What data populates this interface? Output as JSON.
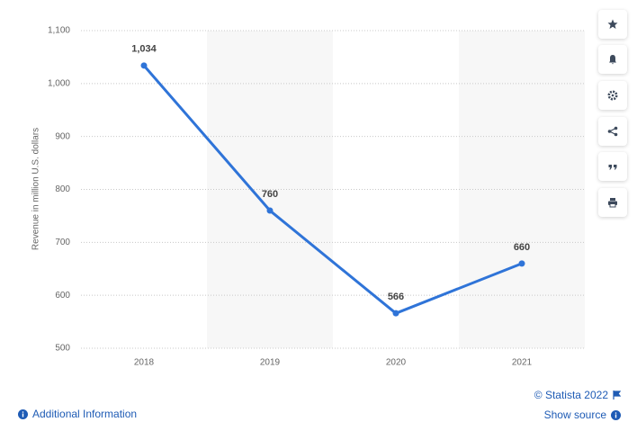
{
  "chart_data": {
    "type": "line",
    "y_label": "Revenue in million U.S. dollars",
    "categories": [
      "2018",
      "2019",
      "2020",
      "2021"
    ],
    "series": [
      {
        "name": "Revenue",
        "color": "#2f74d8",
        "values": [
          1034,
          760,
          566,
          660
        ],
        "value_labels": [
          "1,034",
          "760",
          "566",
          "660"
        ]
      }
    ],
    "ylim": [
      500,
      1100
    ],
    "yticks": [
      500,
      600,
      700,
      800,
      900,
      {
        "value": 1000,
        "label": "1,000"
      },
      {
        "value": 1100,
        "label": "1,100"
      }
    ],
    "grid": true
  },
  "footer": {
    "copyright": "© Statista 2022",
    "source": "Show source",
    "info": "Additional Information"
  }
}
